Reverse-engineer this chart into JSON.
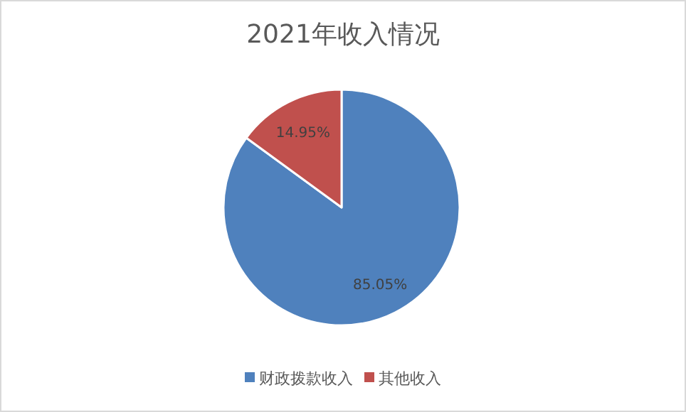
{
  "chart_data": {
    "type": "pie",
    "title": "2021年收入情况",
    "categories": [
      "财政拨款收入",
      "其他收入"
    ],
    "values": [
      85.05,
      14.95
    ],
    "colors": [
      "#4f81bd",
      "#c0504d"
    ],
    "value_labels": [
      "85.05%",
      "14.95%"
    ],
    "legend": "bottom"
  }
}
